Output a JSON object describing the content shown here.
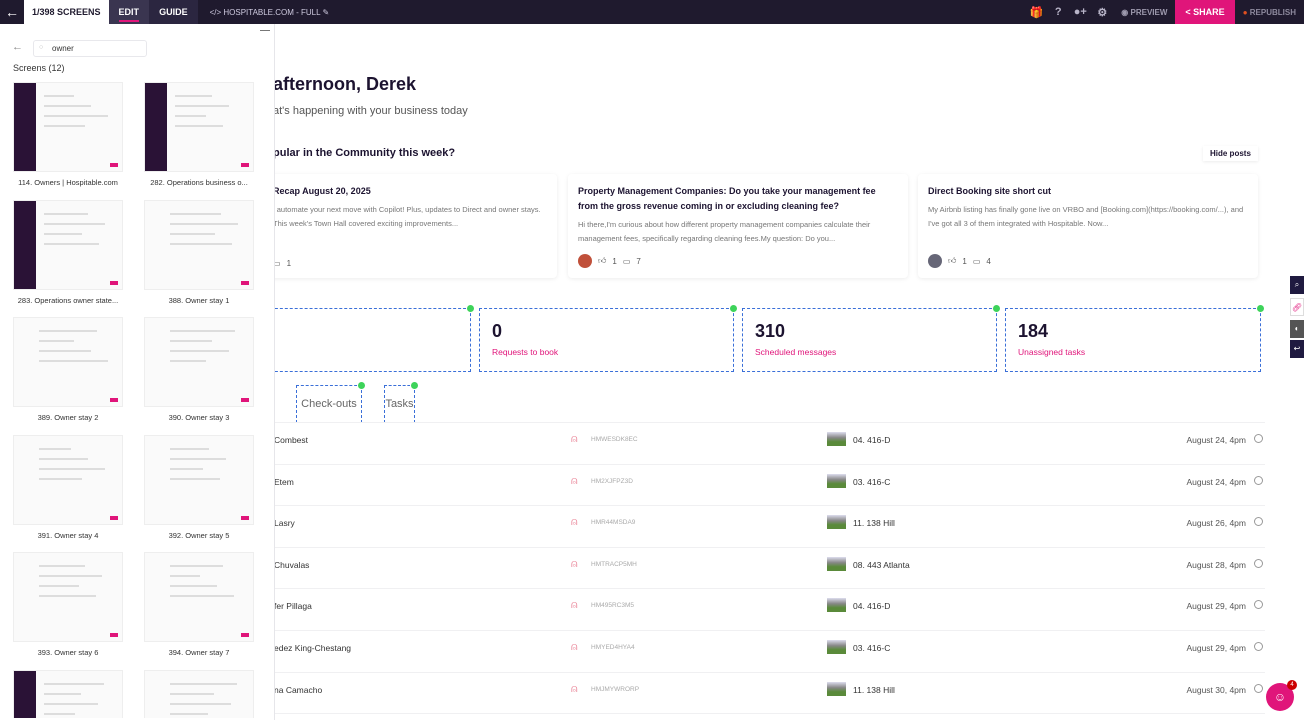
{
  "topbar": {
    "screens": "1/398 SCREENS",
    "edit": "EDIT",
    "guide": "GUIDE",
    "project": "HOSPITABLE.COM - FULL",
    "preview": "PREVIEW",
    "share": "SHARE",
    "republish": "REPUBLISH"
  },
  "sidebar": {
    "search_value": "owner",
    "title": "Screens (12)",
    "screens": [
      {
        "label": "114. Owners | Hospitable.com"
      },
      {
        "label": "282. Operations business o..."
      },
      {
        "label": "283. Operations owner state..."
      },
      {
        "label": "388. Owner stay 1"
      },
      {
        "label": "389. Owner stay 2"
      },
      {
        "label": "390. Owner stay 3"
      },
      {
        "label": "391. Owner stay 4"
      },
      {
        "label": "392. Owner stay 5"
      },
      {
        "label": "393. Owner stay 6"
      },
      {
        "label": "394. Owner stay 7"
      },
      {
        "label": ""
      },
      {
        "label": ""
      }
    ]
  },
  "main": {
    "greeting": "afternoon, Derek",
    "subtitle": "at's happening with your business today",
    "community_title": "pular in the Community this week?",
    "hide_posts": "Hide posts",
    "posts": [
      {
        "title": "Recap August 20, 2025",
        "body": "l automate your next move with Copilot! Plus, updates to Direct and owner stays. This week's Town Hall covered exciting improvements...",
        "likes": "",
        "comments": "1"
      },
      {
        "title": "Property Management Companies: Do you take your management fee from the gross revenue coming in or excluding cleaning fee?",
        "body": "Hi there,I'm curious about how different property management companies calculate their management fees, specifically regarding cleaning fees.My question: Do you...",
        "likes": "1",
        "comments": "7"
      },
      {
        "title": "Direct Booking site short cut",
        "body": "My Airbnb listing has finally gone live on VRBO and [Booking.com](https://booking.com/...), and I've got all 3 of them integrated with Hospitable. Now...",
        "likes": "1",
        "comments": "4"
      }
    ],
    "stats": [
      {
        "number": "",
        "label": ""
      },
      {
        "number": "0",
        "label": "Requests to book"
      },
      {
        "number": "310",
        "label": "Scheduled messages"
      },
      {
        "number": "184",
        "label": "Unassigned tasks"
      }
    ],
    "tabs": [
      "Check-outs",
      "Tasks"
    ],
    "rows": [
      {
        "guest": "Combest",
        "code": "HMWESDK8EC",
        "property": "04. 416-D",
        "date": "August 24, 4pm"
      },
      {
        "guest": "Etem",
        "code": "HM2XJFPZ3D",
        "property": "03. 416-C",
        "date": "August 24, 4pm"
      },
      {
        "guest": "Lasry",
        "code": "HMR44MSDA9",
        "property": "11. 138 Hill",
        "date": "August 26, 4pm"
      },
      {
        "guest": "Chuvalas",
        "code": "HMTRACP5MH",
        "property": "08. 443 Atlanta",
        "date": "August 28, 4pm"
      },
      {
        "guest": "fer Pillaga",
        "code": "HM495RC3M5",
        "property": "04. 416-D",
        "date": "August 29, 4pm"
      },
      {
        "guest": "edez King-Chestang",
        "code": "HMYED4HYA4",
        "property": "03. 416-C",
        "date": "August 29, 4pm"
      },
      {
        "guest": "na Camacho",
        "code": "HMJMYWRORP",
        "property": "11. 138 Hill",
        "date": "August 30, 4pm"
      }
    ],
    "chat_badge": "4"
  },
  "colors": {
    "accent": "#e0157a",
    "topbar": "#1f1a2e",
    "selection": "#3a6fd8"
  }
}
